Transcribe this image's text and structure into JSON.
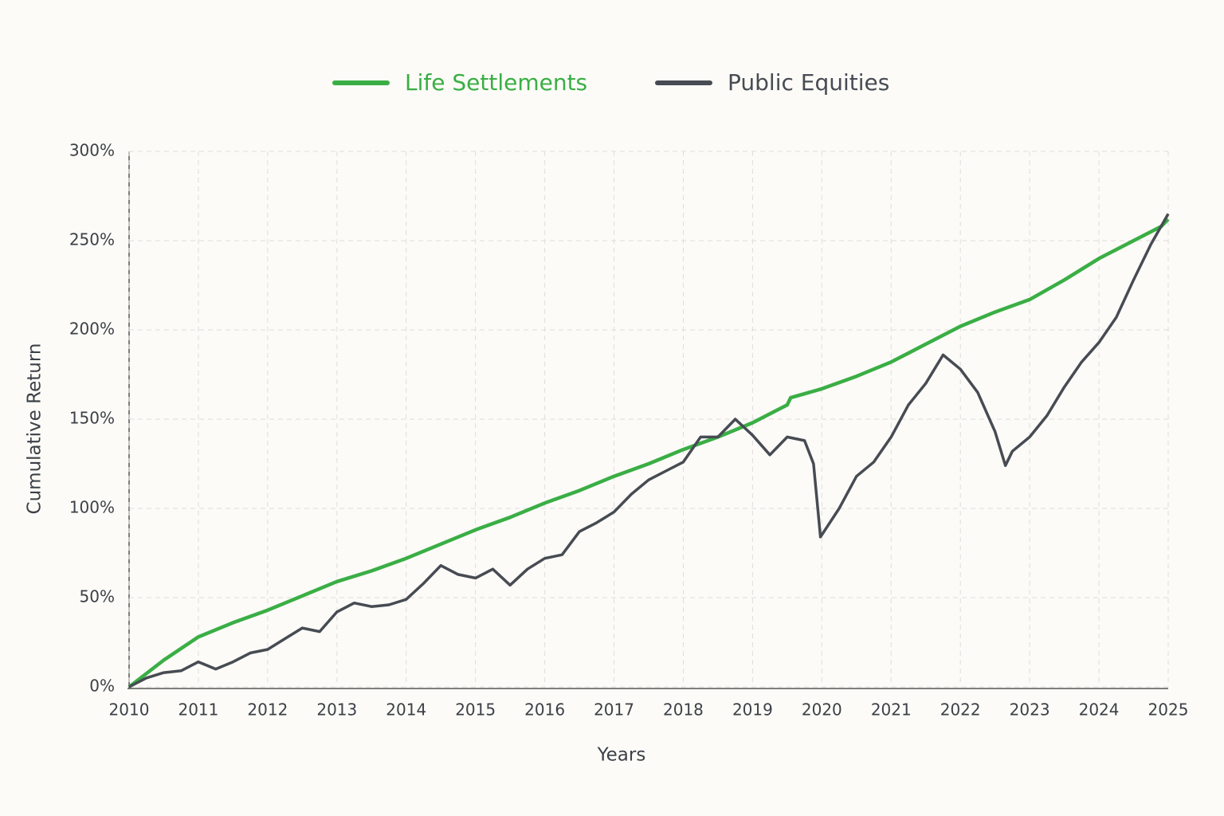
{
  "chart_data": {
    "type": "line",
    "x_label": "Years",
    "y_label": "Cumulative Return",
    "xlim": [
      2010,
      2025
    ],
    "ylim": [
      0,
      300
    ],
    "xticks": [
      2010,
      2011,
      2012,
      2013,
      2014,
      2015,
      2016,
      2017,
      2018,
      2019,
      2020,
      2021,
      2022,
      2023,
      2024,
      2025
    ],
    "yticks": [
      {
        "value": 0,
        "label": "0%"
      },
      {
        "value": 50,
        "label": "50%"
      },
      {
        "value": 100,
        "label": "100%"
      },
      {
        "value": 150,
        "label": "150%"
      },
      {
        "value": 200,
        "label": "200%"
      },
      {
        "value": 250,
        "label": "250%"
      },
      {
        "value": 300,
        "label": "300%"
      }
    ],
    "grid": true,
    "legend": "top",
    "series": [
      {
        "name": "Life Settlements",
        "color": "#3aae45",
        "x": [
          2010,
          2010.5,
          2011,
          2011.5,
          2012,
          2012.5,
          2013,
          2013.5,
          2014,
          2014.5,
          2015,
          2015.5,
          2016,
          2016.5,
          2017,
          2017.5,
          2018,
          2018.5,
          2019,
          2019.5,
          2019.55,
          2020,
          2020.5,
          2021,
          2021.5,
          2022,
          2022.5,
          2023,
          2023.5,
          2024,
          2024.5,
          2024.9,
          2025
        ],
        "values": [
          0,
          15,
          28,
          36,
          43,
          51,
          59,
          65,
          72,
          80,
          88,
          95,
          103,
          110,
          118,
          125,
          133,
          140,
          148,
          158,
          162,
          167,
          174,
          182,
          192,
          202,
          210,
          217,
          228,
          240,
          250,
          258,
          262
        ]
      },
      {
        "name": "Public Equities",
        "color": "#474b53",
        "x": [
          2010,
          2010.25,
          2010.5,
          2010.75,
          2011,
          2011.25,
          2011.5,
          2011.75,
          2012,
          2012.25,
          2012.5,
          2012.75,
          2013,
          2013.25,
          2013.5,
          2013.75,
          2014,
          2014.25,
          2014.5,
          2014.75,
          2015,
          2015.25,
          2015.5,
          2015.75,
          2016,
          2016.25,
          2016.5,
          2016.75,
          2017,
          2017.25,
          2017.5,
          2017.75,
          2018,
          2018.25,
          2018.5,
          2018.75,
          2019,
          2019.25,
          2019.5,
          2019.75,
          2019.88,
          2019.98,
          2020.25,
          2020.5,
          2020.75,
          2021,
          2021.25,
          2021.5,
          2021.75,
          2022,
          2022.25,
          2022.5,
          2022.65,
          2022.75,
          2023,
          2023.25,
          2023.5,
          2023.75,
          2024,
          2024.25,
          2024.5,
          2024.75,
          2025
        ],
        "values": [
          0,
          5,
          8,
          9,
          14,
          10,
          14,
          19,
          21,
          27,
          33,
          31,
          42,
          47,
          45,
          46,
          49,
          58,
          68,
          63,
          61,
          66,
          57,
          66,
          72,
          74,
          87,
          92,
          98,
          108,
          116,
          121,
          126,
          140,
          140,
          150,
          141,
          130,
          140,
          138,
          125,
          84,
          100,
          118,
          126,
          140,
          158,
          170,
          186,
          178,
          165,
          143,
          124,
          132,
          140,
          152,
          168,
          182,
          193,
          207,
          228,
          248,
          265
        ]
      }
    ]
  }
}
